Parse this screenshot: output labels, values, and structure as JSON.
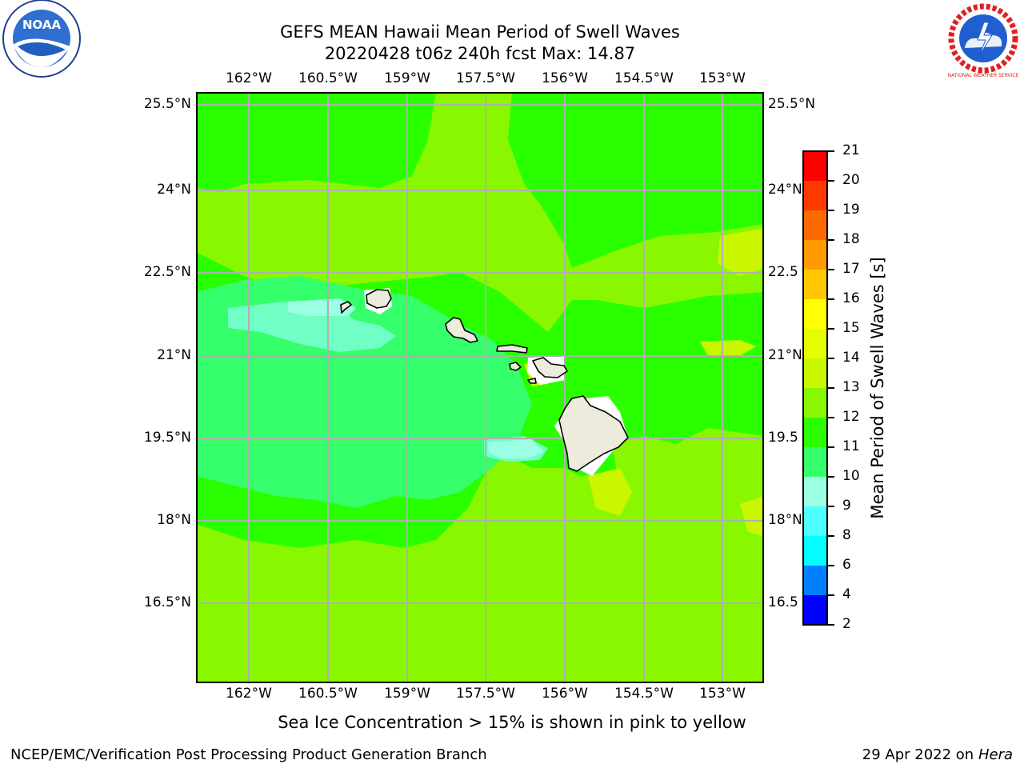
{
  "header": {
    "title_line1": "GEFS MEAN Hawaii Mean Period of Swell Waves",
    "title_line2": "20220428 t06z 240h fcst   Max: 14.87"
  },
  "logos": {
    "noaa_text": "NOAA",
    "nws_text": "NATIONAL WEATHER SERVICE"
  },
  "map": {
    "lon_labels": [
      "162°W",
      "160.5°W",
      "159°W",
      "157.5°W",
      "156°W",
      "154.5°W",
      "153°W"
    ],
    "lat_labels": [
      "25.5°N",
      "24°N",
      "22.5°N",
      "21°N",
      "19.5°N",
      "18°N",
      "16.5°N"
    ],
    "right_lat_labels": [
      "25.5°N",
      "24°N",
      "22.5",
      "21°N",
      "19.5",
      "18°N",
      "16.5"
    ],
    "colors": {
      "c11": "#2aff00",
      "c12": "#88f700",
      "c10": "#35ff6a",
      "c9": "#70ffc4",
      "c8": "#9bffe4",
      "c13": "#c8f700",
      "land": "#ecebdc",
      "grid": "#b0b0b0"
    }
  },
  "colorbar": {
    "label": "Mean Period of Swell Waves [s]",
    "ticks": [
      "21",
      "20",
      "19",
      "18",
      "17",
      "16",
      "15",
      "14",
      "13",
      "12",
      "11",
      "10",
      "9",
      "8",
      "6",
      "4",
      "2"
    ],
    "colors": [
      "#ff0000",
      "#ff3a00",
      "#ff6a00",
      "#ff9a00",
      "#ffc800",
      "#ffff00",
      "#e6ff00",
      "#c8f700",
      "#88f700",
      "#2aff00",
      "#35ff6a",
      "#9bffe4",
      "#4dffff",
      "#00ffff",
      "#0080ff",
      "#0000ff"
    ]
  },
  "footer": {
    "note": "Sea Ice Concentration > 15% is shown in pink to yellow",
    "credit": "NCEP/EMC/Verification Post Processing Product Generation Branch",
    "date": "29 Apr 2022 on ",
    "machine": "Hera"
  }
}
